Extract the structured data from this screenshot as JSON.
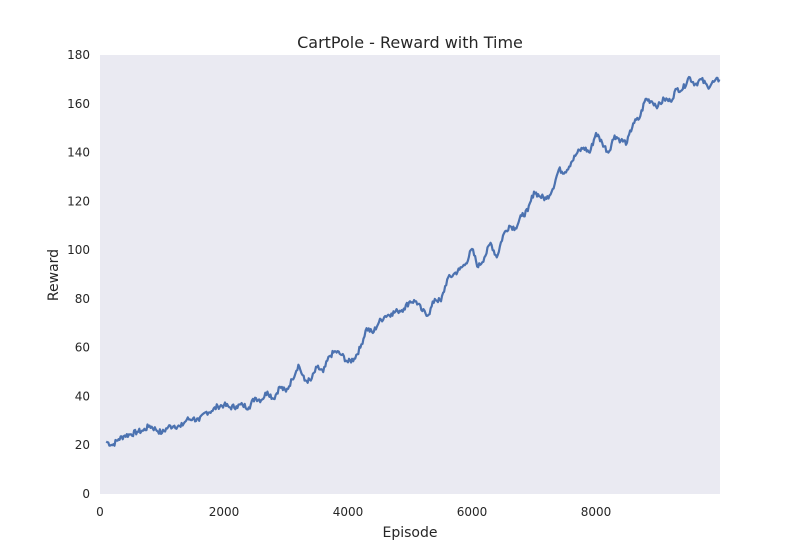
{
  "chart_data": {
    "type": "line",
    "title": "CartPole - Reward with Time",
    "xlabel": "Episode",
    "ylabel": "Reward",
    "xlim": [
      0,
      10000
    ],
    "ylim": [
      0,
      180
    ],
    "xticks": [
      "0",
      "2000",
      "4000",
      "6000",
      "8000"
    ],
    "yticks": [
      "0",
      "20",
      "40",
      "60",
      "80",
      "100",
      "120",
      "140",
      "160",
      "180"
    ],
    "grid": false,
    "legend": "none",
    "colors": {
      "line": "#4c72b0",
      "plot_bg": "#eaeaf2"
    },
    "series": [
      {
        "x": [
          100,
          200,
          300,
          400,
          500,
          600,
          700,
          800,
          900,
          1000,
          1100,
          1200,
          1300,
          1400,
          1500,
          1600,
          1700,
          1800,
          1900,
          2000,
          2100,
          2200,
          2300,
          2400,
          2500,
          2600,
          2700,
          2800,
          2900,
          3000,
          3100,
          3200,
          3300,
          3400,
          3500,
          3600,
          3700,
          3800,
          3900,
          4000,
          4100,
          4200,
          4300,
          4400,
          4500,
          4600,
          4700,
          4800,
          4900,
          5000,
          5100,
          5200,
          5300,
          5400,
          5500,
          5600,
          5700,
          5800,
          5900,
          6000,
          6100,
          6200,
          6300,
          6400,
          6500,
          6600,
          6700,
          6800,
          6900,
          7000,
          7100,
          7200,
          7300,
          7400,
          7500,
          7600,
          7700,
          7800,
          7900,
          8000,
          8100,
          8200,
          8300,
          8400,
          8500,
          8600,
          8700,
          8800,
          8900,
          9000,
          9100,
          9200,
          9300,
          9400,
          9500,
          9600,
          9700,
          9800,
          9900,
          9990
        ],
        "values": [
          21.5,
          20.0,
          22.5,
          24.0,
          24.5,
          25.5,
          26.0,
          28.0,
          26.5,
          25.0,
          27.5,
          28.0,
          27.5,
          30.5,
          31.0,
          30.0,
          33.5,
          34.0,
          36.0,
          36.5,
          35.5,
          36.0,
          36.5,
          35.5,
          39.5,
          38.5,
          42.0,
          39.0,
          44.0,
          42.0,
          47.0,
          53.0,
          46.5,
          46.5,
          52.0,
          50.0,
          56.5,
          58.5,
          57.0,
          54.0,
          55.5,
          60.0,
          68.0,
          66.0,
          70.5,
          73.0,
          74.0,
          75.0,
          76.0,
          79.0,
          79.0,
          75.0,
          73.5,
          80.0,
          79.0,
          88.0,
          90.0,
          92.0,
          94.5,
          100.5,
          93.0,
          97.0,
          103.0,
          97.0,
          106.0,
          110.0,
          109.0,
          114.0,
          116.0,
          124.0,
          122.0,
          121.0,
          125.0,
          133.0,
          132.0,
          136.0,
          140.0,
          142.0,
          140.0,
          148.0,
          144.0,
          140.0,
          147.0,
          145.0,
          144.0,
          152.0,
          154.0,
          162.0,
          161.0,
          159.0,
          162.0,
          161.0,
          166.0,
          166.0,
          171.0,
          168.0,
          170.0,
          167.0,
          169.0,
          170.0
        ]
      }
    ]
  }
}
